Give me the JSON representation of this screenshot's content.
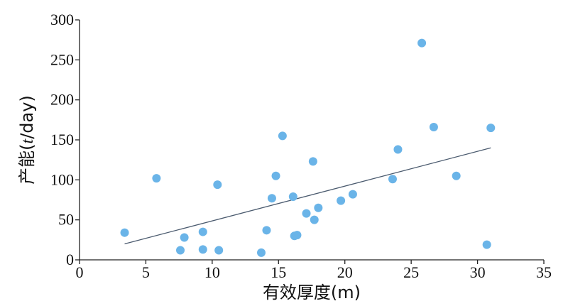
{
  "chart_data": {
    "type": "scatter",
    "xlabel": "有效厚度(m)",
    "ylabel_prefix": "产能(",
    "ylabel_italic": "t",
    "ylabel_suffix": "/day)",
    "xlim": [
      0,
      35
    ],
    "ylim": [
      0,
      300
    ],
    "xticks": [
      0,
      5,
      10,
      15,
      20,
      25,
      30,
      35
    ],
    "yticks": [
      0,
      50,
      100,
      150,
      200,
      250,
      300
    ],
    "grid": false,
    "point_color": "#6ab4e8",
    "trend_color": "#4a5a6e",
    "points": [
      {
        "x": 3.4,
        "y": 34
      },
      {
        "x": 5.8,
        "y": 102
      },
      {
        "x": 7.6,
        "y": 12
      },
      {
        "x": 7.9,
        "y": 28
      },
      {
        "x": 9.3,
        "y": 13
      },
      {
        "x": 9.3,
        "y": 35
      },
      {
        "x": 10.4,
        "y": 94
      },
      {
        "x": 10.5,
        "y": 12
      },
      {
        "x": 13.7,
        "y": 9
      },
      {
        "x": 14.1,
        "y": 37
      },
      {
        "x": 14.5,
        "y": 77
      },
      {
        "x": 14.8,
        "y": 105
      },
      {
        "x": 15.3,
        "y": 155
      },
      {
        "x": 16.1,
        "y": 79
      },
      {
        "x": 16.2,
        "y": 30
      },
      {
        "x": 16.4,
        "y": 31
      },
      {
        "x": 17.1,
        "y": 58
      },
      {
        "x": 17.6,
        "y": 123
      },
      {
        "x": 17.7,
        "y": 50
      },
      {
        "x": 18.0,
        "y": 65
      },
      {
        "x": 19.7,
        "y": 74
      },
      {
        "x": 20.6,
        "y": 82
      },
      {
        "x": 23.6,
        "y": 101
      },
      {
        "x": 24.0,
        "y": 138
      },
      {
        "x": 25.8,
        "y": 271
      },
      {
        "x": 26.7,
        "y": 166
      },
      {
        "x": 28.4,
        "y": 105
      },
      {
        "x": 30.7,
        "y": 19
      },
      {
        "x": 31.0,
        "y": 165
      }
    ],
    "trendline": {
      "x1": 3.4,
      "y1": 20,
      "x2": 31.0,
      "y2": 140
    }
  }
}
